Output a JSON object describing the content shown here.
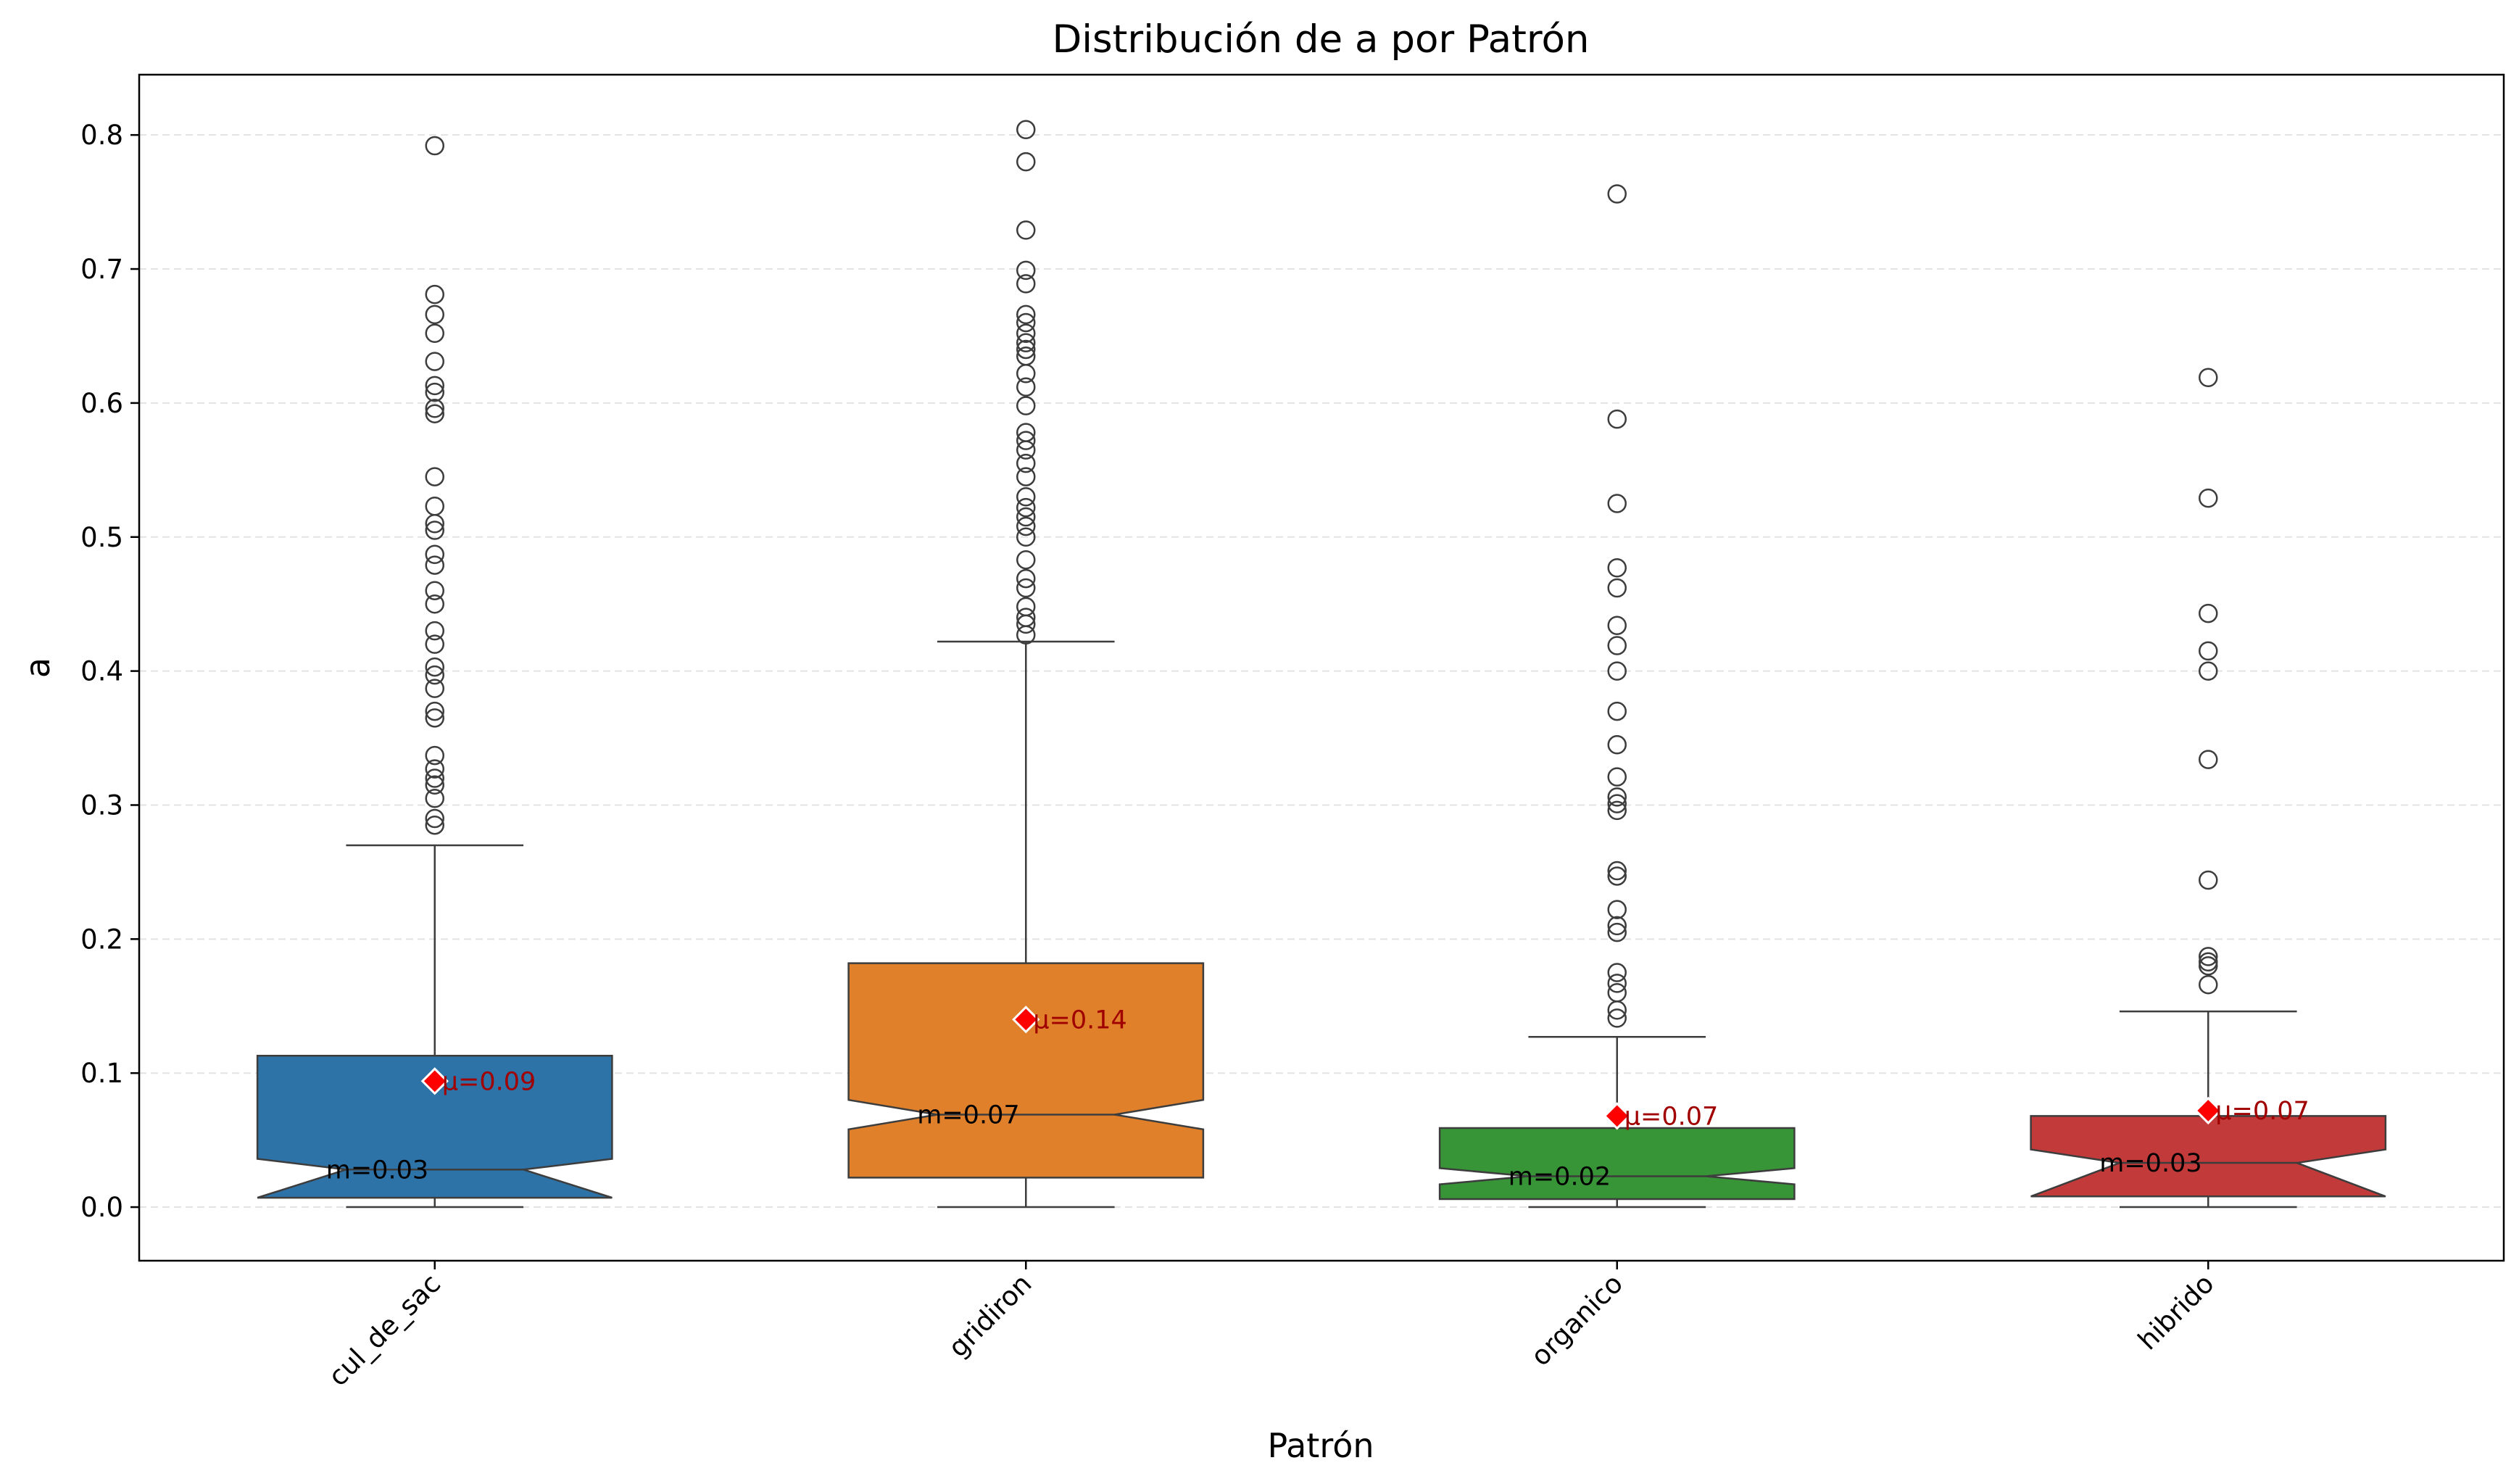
{
  "chart_data": {
    "type": "box",
    "title": "Distribución de a por Patrón",
    "xlabel": "Patrón",
    "ylabel": "a",
    "ylim": [
      -0.04,
      0.845
    ],
    "yticks": [
      "0.0",
      "0.1",
      "0.2",
      "0.3",
      "0.4",
      "0.5",
      "0.6",
      "0.7",
      "0.8"
    ],
    "ytick_values": [
      0.0,
      0.1,
      0.2,
      0.3,
      0.4,
      0.5,
      0.6,
      0.7,
      0.8
    ],
    "grid": "y, dashed",
    "notched": true,
    "categories": [
      "cul_de_sac",
      "gridiron",
      "organico",
      "hibrido"
    ],
    "boxes": [
      {
        "name": "cul_de_sac",
        "color": "#2e73a8",
        "whisker_low": 0.0,
        "q1": 0.007,
        "median": 0.028,
        "q3": 0.113,
        "whisker_high": 0.27,
        "notch_low": 0.007,
        "notch_high": 0.036,
        "mean": 0.094,
        "median_label": "m=0.03",
        "mean_label": "μ=0.09",
        "outliers": [
          0.792,
          0.681,
          0.666,
          0.652,
          0.631,
          0.613,
          0.608,
          0.596,
          0.592,
          0.545,
          0.523,
          0.51,
          0.505,
          0.487,
          0.479,
          0.46,
          0.45,
          0.43,
          0.42,
          0.403,
          0.397,
          0.387,
          0.37,
          0.365,
          0.337,
          0.327,
          0.32,
          0.315,
          0.305,
          0.29,
          0.285
        ]
      },
      {
        "name": "gridiron",
        "color": "#e0802b",
        "whisker_low": 0.0,
        "q1": 0.022,
        "median": 0.069,
        "q3": 0.182,
        "whisker_high": 0.422,
        "notch_low": 0.058,
        "notch_high": 0.08,
        "mean": 0.14,
        "median_label": "m=0.07",
        "mean_label": "μ=0.14",
        "outliers": [
          0.804,
          0.78,
          0.729,
          0.699,
          0.689,
          0.666,
          0.66,
          0.652,
          0.645,
          0.64,
          0.635,
          0.622,
          0.612,
          0.598,
          0.578,
          0.572,
          0.565,
          0.555,
          0.545,
          0.53,
          0.522,
          0.515,
          0.508,
          0.5,
          0.483,
          0.469,
          0.462,
          0.448,
          0.44,
          0.435,
          0.427
        ]
      },
      {
        "name": "organico",
        "color": "#379437",
        "whisker_low": 0.0,
        "q1": 0.006,
        "median": 0.023,
        "q3": 0.059,
        "whisker_high": 0.127,
        "notch_low": 0.017,
        "notch_high": 0.029,
        "mean": 0.068,
        "median_label": "m=0.02",
        "mean_label": "μ=0.07",
        "outliers": [
          0.756,
          0.588,
          0.525,
          0.477,
          0.462,
          0.434,
          0.419,
          0.4,
          0.37,
          0.345,
          0.321,
          0.306,
          0.301,
          0.296,
          0.251,
          0.247,
          0.222,
          0.21,
          0.205,
          0.175,
          0.167,
          0.16,
          0.147,
          0.141
        ]
      },
      {
        "name": "hibrido",
        "color": "#c23a3a",
        "whisker_low": 0.0,
        "q1": 0.008,
        "median": 0.033,
        "q3": 0.068,
        "whisker_high": 0.146,
        "notch_low": 0.008,
        "notch_high": 0.043,
        "mean": 0.072,
        "median_label": "m=0.03",
        "mean_label": "μ=0.07",
        "outliers": [
          0.619,
          0.529,
          0.443,
          0.415,
          0.4,
          0.334,
          0.244,
          0.187,
          0.183,
          0.18,
          0.166
        ]
      }
    ]
  }
}
